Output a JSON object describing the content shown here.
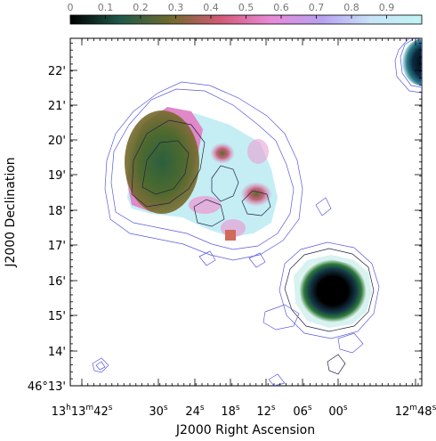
{
  "chart_data": {
    "type": "heatmap",
    "title": "",
    "xlabel": "J2000 Right Ascension",
    "ylabel": "J2000 Declination",
    "colorbar": {
      "range": [
        0,
        1
      ],
      "ticks": [
        "0",
        "0.1",
        "0.2",
        "0.3",
        "0.4",
        "0.5",
        "0.6",
        "0.7",
        "0.8",
        "0.9"
      ],
      "stops": [
        "#000000",
        "#1f5a4a",
        "#6f6a2c",
        "#d45a78",
        "#e88ad8",
        "#b8a0f0",
        "#c8e4f8",
        "#c0f4f4"
      ]
    },
    "xticks": [
      {
        "main": "13",
        "mu": "h",
        "sub": "13",
        "su": "m",
        "sec": "42",
        "ss": "s"
      },
      {
        "sec": "30",
        "ss": "s"
      },
      {
        "sec": "24",
        "ss": "s"
      },
      {
        "sec": "18",
        "ss": "s"
      },
      {
        "sec": "12",
        "ss": "s"
      },
      {
        "sec": "06",
        "ss": "s"
      },
      {
        "sec": "00",
        "ss": "s"
      },
      {
        "sub": "12",
        "su": "m",
        "sec": "48",
        "ss": "s"
      }
    ],
    "yticks": [
      {
        "label": "22'"
      },
      {
        "label": "21'"
      },
      {
        "label": "20'"
      },
      {
        "label": "19'"
      },
      {
        "label": "18'"
      },
      {
        "label": "17'"
      },
      {
        "label": "16'"
      },
      {
        "label": "15'"
      },
      {
        "label": "14'"
      },
      {
        "label": "46°13'"
      }
    ],
    "contour_colors": {
      "low": "#5a5ae0",
      "high": "#222244"
    }
  }
}
